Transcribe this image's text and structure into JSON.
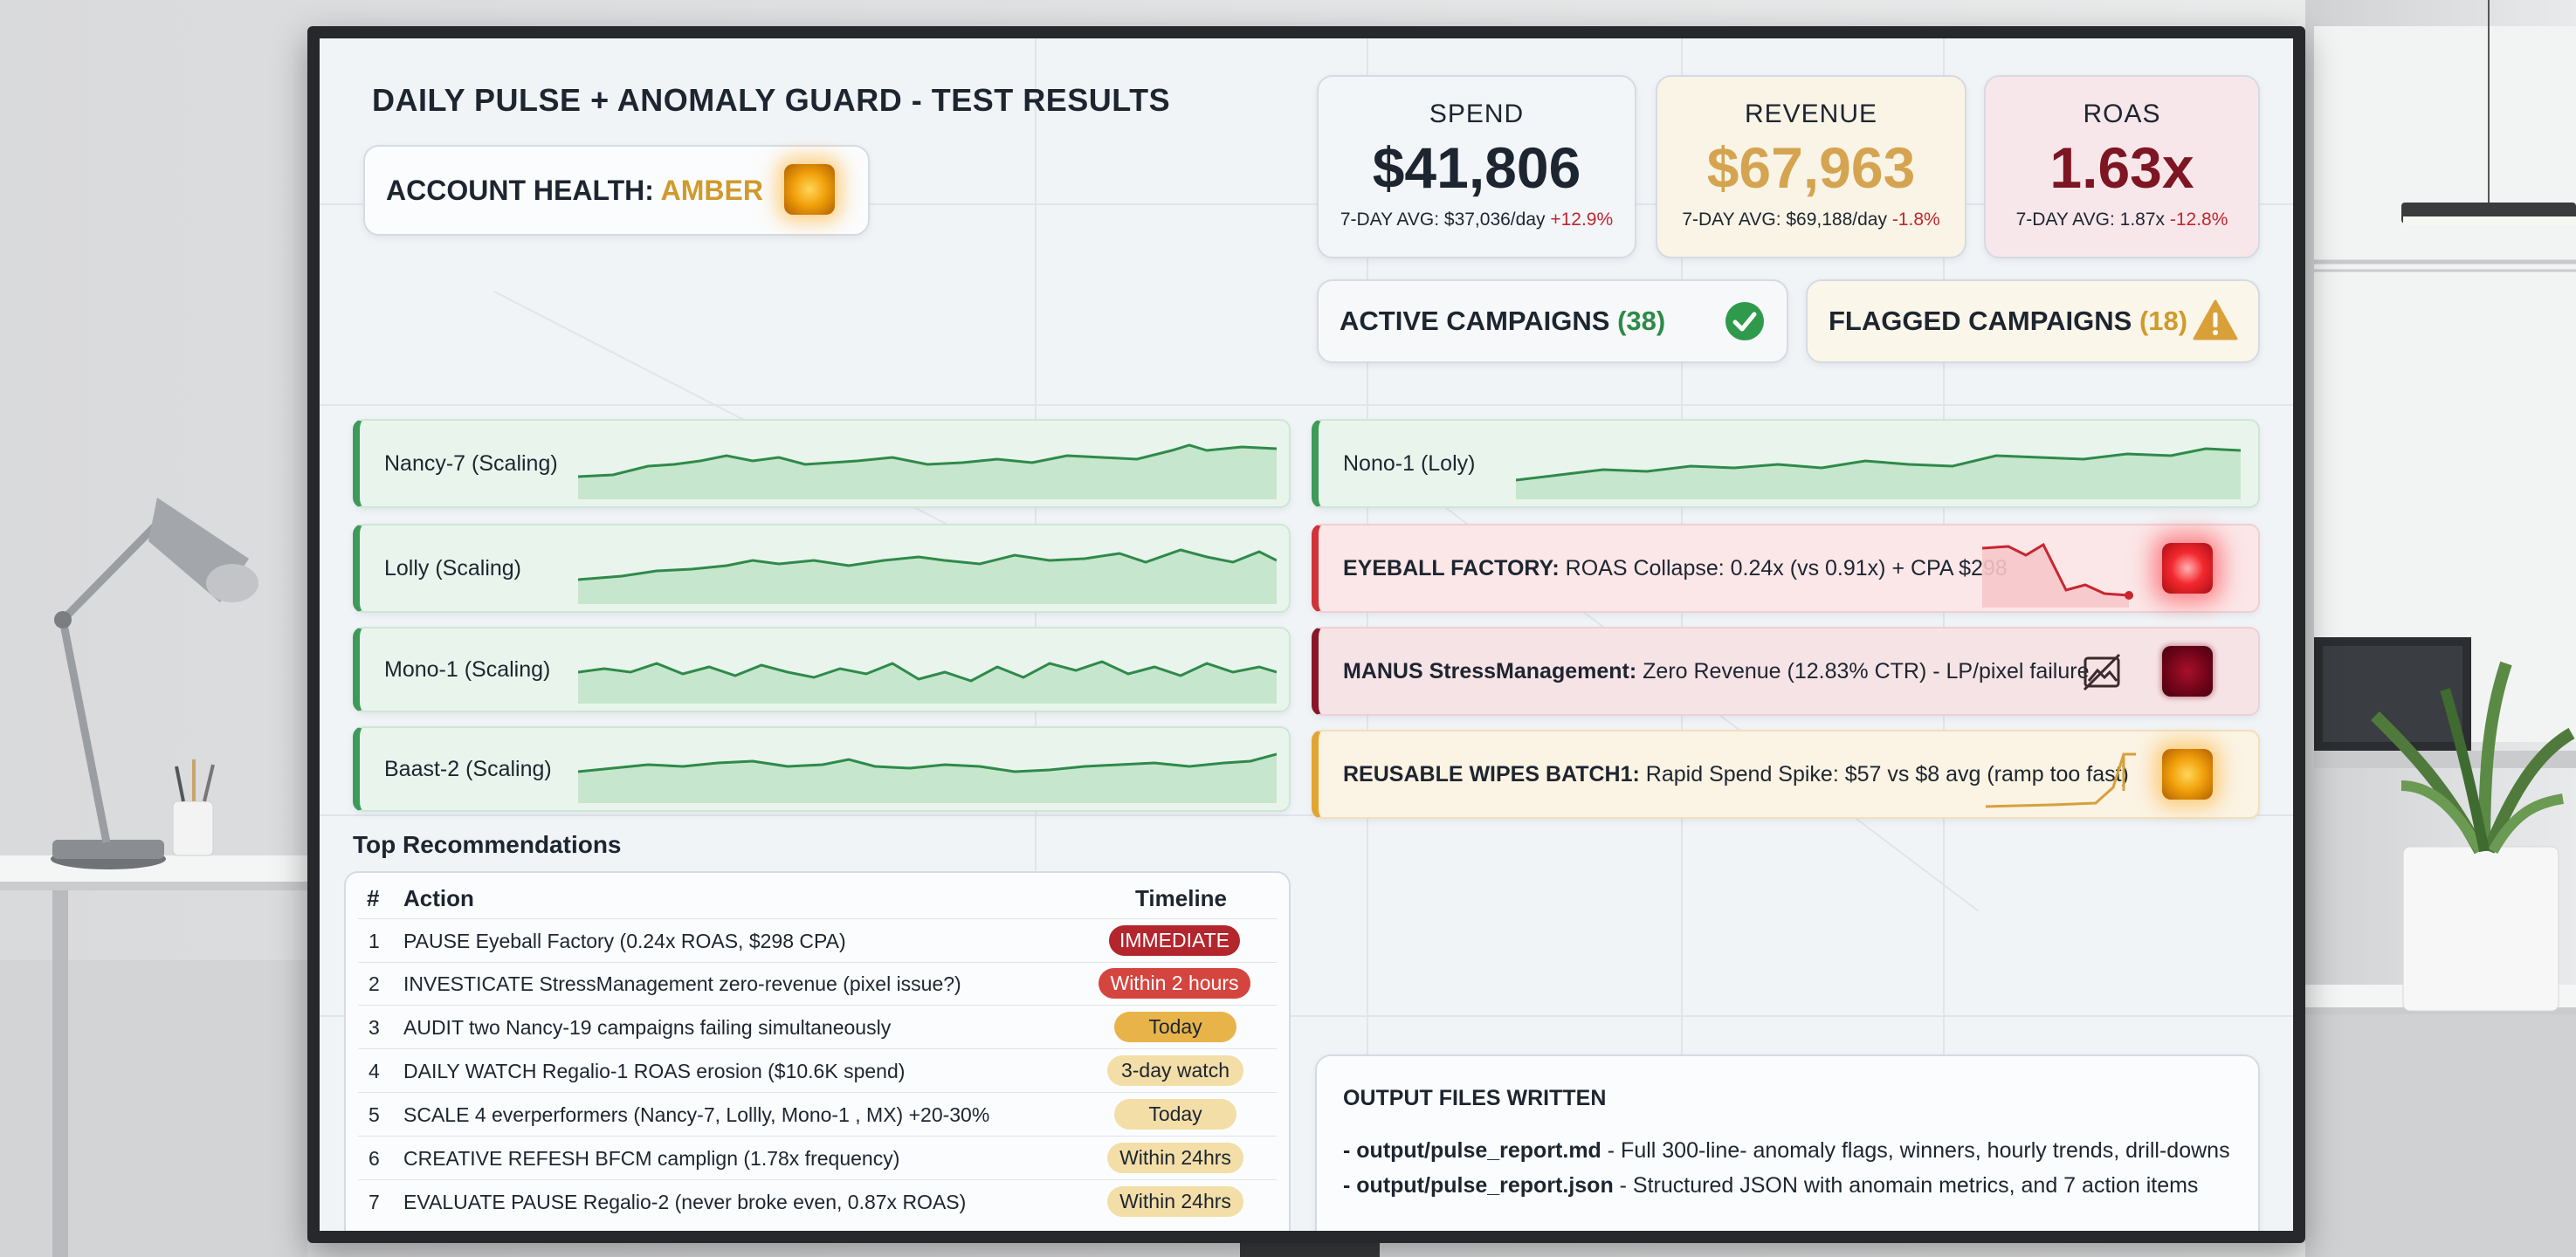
{
  "dashboard": {
    "title": "DAILY PULSE + ANOMALY GUARD - TEST RESULTS",
    "health": {
      "label": "ACCOUNT HEALTH:",
      "status": "AMBER",
      "status_color": "#d09a2c"
    }
  },
  "kpis": {
    "spend": {
      "label": "SPEND",
      "value": "$41,806",
      "avg": "7-DAY AVG: $37,036/day",
      "delta": "+12.9%",
      "value_color": "#1d2530"
    },
    "revenue": {
      "label": "REVENUE",
      "value": "$67,963",
      "avg": "7-DAY AVG: $69,188/day",
      "delta": "-1.8%",
      "value_color": "#d5a451"
    },
    "roas": {
      "label": "ROAS",
      "value": "1.63x",
      "avg": "7-DAY AVG: 1.87x",
      "delta": "-12.8%",
      "value_color": "#7d1523"
    }
  },
  "campaign_counts": {
    "active": {
      "label": "ACTIVE CAMPAIGNS",
      "count": "(38)",
      "icon": "check-circle-icon"
    },
    "flagged": {
      "label": "FLAGGED CAMPAIGNS",
      "count": "(18)",
      "icon": "warning-triangle-icon"
    }
  },
  "winners": [
    {
      "name": "Nancy-7 (Scaling)"
    },
    {
      "name": "Lolly (Scaling)"
    },
    {
      "name": "Mono-1 (Scaling)"
    },
    {
      "name": "Baast-2 (Scaling)"
    }
  ],
  "watch": {
    "name": "Nono-1 (Loly)"
  },
  "anomalies": [
    {
      "name": "EYEBALL FACTORY:",
      "detail": "ROAS Collapse: 0.24x (vs 0.91x) + CPA $298",
      "severity": "critical"
    },
    {
      "name": "MANUS StressManagement:",
      "detail": "Zero Revenue (12.83% CTR) - LP/pixel failure",
      "severity": "high",
      "icon": "no-image-icon"
    },
    {
      "name": "REUSABLE WIPES BATCH1:",
      "detail": "Rapid Spend Spike: $57 vs $8 avg (ramp too fast)",
      "severity": "medium"
    }
  ],
  "recommendations": {
    "title": "Top Recommendations",
    "headers": {
      "num": "#",
      "action": "Action",
      "timeline": "Timeline"
    },
    "rows": [
      {
        "num": "1",
        "action": "PAUSE Eyeball Factory (0.24x ROAS, $298 CPA)",
        "timeline": "IMMEDIATE"
      },
      {
        "num": "2",
        "action": "INVESTICATE StressManagement zero-revenue (pixel issue?)",
        "timeline": "Within 2 hours"
      },
      {
        "num": "3",
        "action": "AUDIT two Nancy-19 campaigns failing simultaneously",
        "timeline": "Today"
      },
      {
        "num": "4",
        "action": "DAILY WATCH Regalio-1 ROAS erosion ($10.6K spend)",
        "timeline": "3-day watch"
      },
      {
        "num": "5",
        "action": "SCALE 4 everperformers (Nancy-7, Lollly, Mono-1 , MX) +20-30%",
        "timeline": "Today"
      },
      {
        "num": "6",
        "action": "CREATIVE REFESH BFCM camplign (1.78x frequency)",
        "timeline": "Within 24hrs"
      },
      {
        "num": "7",
        "action": "EVALUATE PAUSE Regalio-2 (never broke even, 0.87x ROAS)",
        "timeline": "Within 24hrs"
      }
    ]
  },
  "output": {
    "title": "OUTPUT FILES WRITTEN",
    "files": [
      {
        "path": "- output/pulse_report.md",
        "desc": " - Full 300-line- anomaly flags, winners, hourly trends, drill-downs"
      },
      {
        "path": "- output/pulse_report.json",
        "desc": " - Structured JSON with anomain metrics, and 7 action items"
      }
    ]
  }
}
